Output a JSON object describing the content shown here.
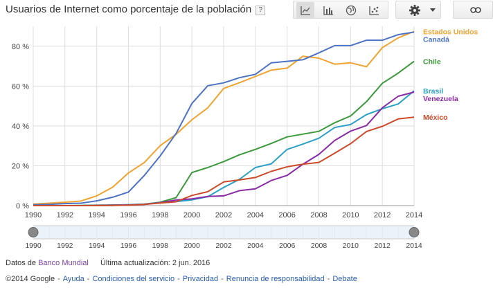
{
  "title": "Usuarios de Internet como porcentaje de la población",
  "help_label": "?",
  "toolbar": {
    "buttons": [
      {
        "name": "line-chart-button",
        "icon": "line-chart-icon"
      },
      {
        "name": "bar-chart-button",
        "icon": "bar-chart-icon"
      },
      {
        "name": "map-button",
        "icon": "globe-icon"
      },
      {
        "name": "scatter-chart-button",
        "icon": "scatter-chart-icon"
      }
    ],
    "settings_icon": "gear-icon",
    "link_icon": "link-icon"
  },
  "chart_data": {
    "type": "line",
    "title": "Usuarios de Internet como porcentaje de la población",
    "xlabel": "",
    "ylabel": "",
    "x": [
      1990,
      1991,
      1992,
      1993,
      1994,
      1995,
      1996,
      1997,
      1998,
      1999,
      2000,
      2001,
      2002,
      2003,
      2004,
      2005,
      2006,
      2007,
      2008,
      2009,
      2010,
      2011,
      2012,
      2013,
      2014
    ],
    "xlim": [
      1990,
      2014
    ],
    "ylim": [
      0,
      90
    ],
    "x_ticks": [
      1990,
      1992,
      1994,
      1996,
      1998,
      2000,
      2002,
      2004,
      2006,
      2008,
      2010,
      2012,
      2014
    ],
    "x_tick_labels": [
      "1990",
      "1992",
      "1994",
      "1996",
      "1998",
      "2000",
      "2002",
      "2004",
      "2006",
      "2008",
      "2010",
      "2012",
      "2014"
    ],
    "y_ticks": [
      0,
      20,
      40,
      60,
      80
    ],
    "y_tick_labels": [
      "0 %",
      "20 %",
      "40 %",
      "60 %",
      "80 %"
    ],
    "grid": true,
    "legend": "right",
    "series": [
      {
        "name": "Estados Unidos",
        "color": "#f0a32e",
        "values": [
          0.8,
          1.2,
          1.7,
          2.3,
          4.9,
          9.2,
          16.4,
          21.6,
          30.1,
          35.8,
          43.1,
          49.1,
          58.8,
          61.7,
          64.8,
          68.0,
          69.0,
          75.0,
          74.0,
          71.0,
          71.7,
          69.7,
          79.3,
          84.2,
          87.4
        ]
      },
      {
        "name": "Canadá",
        "color": "#4c72c4",
        "values": [
          0.4,
          0.6,
          1.0,
          1.2,
          2.4,
          4.2,
          6.8,
          15.1,
          24.9,
          36.2,
          51.3,
          60.2,
          61.6,
          64.2,
          65.9,
          71.7,
          72.4,
          73.2,
          76.7,
          80.3,
          80.3,
          83.0,
          83.0,
          85.8,
          87.1
        ]
      },
      {
        "name": "Chile",
        "color": "#3a9a3a",
        "values": [
          0.0,
          0.0,
          0.0,
          0.1,
          0.2,
          0.3,
          0.4,
          0.7,
          1.7,
          4.0,
          16.6,
          19.1,
          22.1,
          25.5,
          28.2,
          31.2,
          34.5,
          35.9,
          37.3,
          41.6,
          45.0,
          52.2,
          61.4,
          66.5,
          72.4
        ]
      },
      {
        "name": "Brasil",
        "color": "#2aa1c4",
        "values": [
          0.0,
          0.0,
          0.0,
          0.0,
          0.0,
          0.1,
          0.5,
          0.8,
          1.5,
          2.0,
          2.9,
          4.5,
          9.1,
          13.2,
          19.1,
          21.0,
          28.2,
          30.9,
          33.8,
          39.2,
          40.7,
          45.7,
          48.6,
          51.0,
          57.6
        ]
      },
      {
        "name": "Venezuela",
        "color": "#8a2aa6",
        "values": [
          0.0,
          0.0,
          0.0,
          0.0,
          0.1,
          0.2,
          0.3,
          0.6,
          1.5,
          2.8,
          3.4,
          4.6,
          4.9,
          7.5,
          8.4,
          12.6,
          15.2,
          20.8,
          25.7,
          32.7,
          37.4,
          40.2,
          49.1,
          54.9,
          57.0
        ]
      },
      {
        "name": "México",
        "color": "#cc4a2a",
        "values": [
          0.0,
          0.0,
          0.0,
          0.0,
          0.0,
          0.1,
          0.2,
          0.6,
          1.3,
          1.9,
          5.1,
          7.0,
          11.9,
          12.9,
          14.1,
          17.2,
          19.5,
          20.8,
          21.7,
          26.3,
          31.1,
          37.2,
          39.8,
          43.5,
          44.4
        ]
      }
    ]
  },
  "footer": {
    "source_prefix": "Datos de",
    "source_link": "Banco Mundial",
    "last_updated": "Última actualización: 2 jun. 2016",
    "copyright": "©2014 Google",
    "links": [
      "Ayuda",
      "Condiciones del servicio",
      "Privacidad",
      "Renuncia de responsabilidad",
      "Debate"
    ]
  },
  "colors": {
    "grid": "#dddddd",
    "axis_text": "#444444",
    "range_fill": "#eaf3fa",
    "range_border": "#c9c9c9",
    "handle": "#888888"
  }
}
